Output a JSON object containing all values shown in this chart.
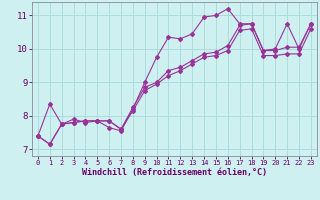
{
  "xlabel": "Windchill (Refroidissement éolien,°C)",
  "ylabel": "",
  "bg_color": "#cff0f0",
  "line_color": "#993399",
  "grid_color": "#aadddd",
  "xlim": [
    -0.5,
    23.5
  ],
  "ylim": [
    6.8,
    11.4
  ],
  "xticks": [
    0,
    1,
    2,
    3,
    4,
    5,
    6,
    7,
    8,
    9,
    10,
    11,
    12,
    13,
    14,
    15,
    16,
    17,
    18,
    19,
    20,
    21,
    22,
    23
  ],
  "yticks": [
    7,
    8,
    9,
    10,
    11
  ],
  "series": [
    {
      "x": [
        0,
        1,
        2,
        3,
        4,
        5,
        6,
        7,
        8,
        9,
        10,
        11,
        12,
        13,
        14,
        15,
        16,
        17,
        18,
        19,
        20,
        21,
        22,
        23
      ],
      "y": [
        7.4,
        8.35,
        7.75,
        7.9,
        7.8,
        7.85,
        7.65,
        7.55,
        8.2,
        9.0,
        9.75,
        10.35,
        10.3,
        10.45,
        10.95,
        11.0,
        11.2,
        10.75,
        10.75,
        9.95,
        10.0,
        10.75,
        10.0,
        10.75
      ]
    },
    {
      "x": [
        0,
        1,
        2,
        3,
        4,
        5,
        6,
        7,
        8,
        9,
        10,
        11,
        12,
        13,
        14,
        15,
        16,
        17,
        18,
        19,
        20,
        21,
        22,
        23
      ],
      "y": [
        7.4,
        7.15,
        7.75,
        7.8,
        7.85,
        7.85,
        7.85,
        7.6,
        8.25,
        8.85,
        9.0,
        9.35,
        9.45,
        9.65,
        9.85,
        9.9,
        10.1,
        10.7,
        10.75,
        9.95,
        9.95,
        10.05,
        10.05,
        10.75
      ]
    },
    {
      "x": [
        0,
        1,
        2,
        3,
        4,
        5,
        6,
        7,
        8,
        9,
        10,
        11,
        12,
        13,
        14,
        15,
        16,
        17,
        18,
        19,
        20,
        21,
        22,
        23
      ],
      "y": [
        7.4,
        7.15,
        7.75,
        7.8,
        7.85,
        7.85,
        7.85,
        7.6,
        8.15,
        8.75,
        8.95,
        9.2,
        9.35,
        9.55,
        9.75,
        9.8,
        9.95,
        10.55,
        10.6,
        9.8,
        9.8,
        9.85,
        9.85,
        10.6
      ]
    }
  ]
}
